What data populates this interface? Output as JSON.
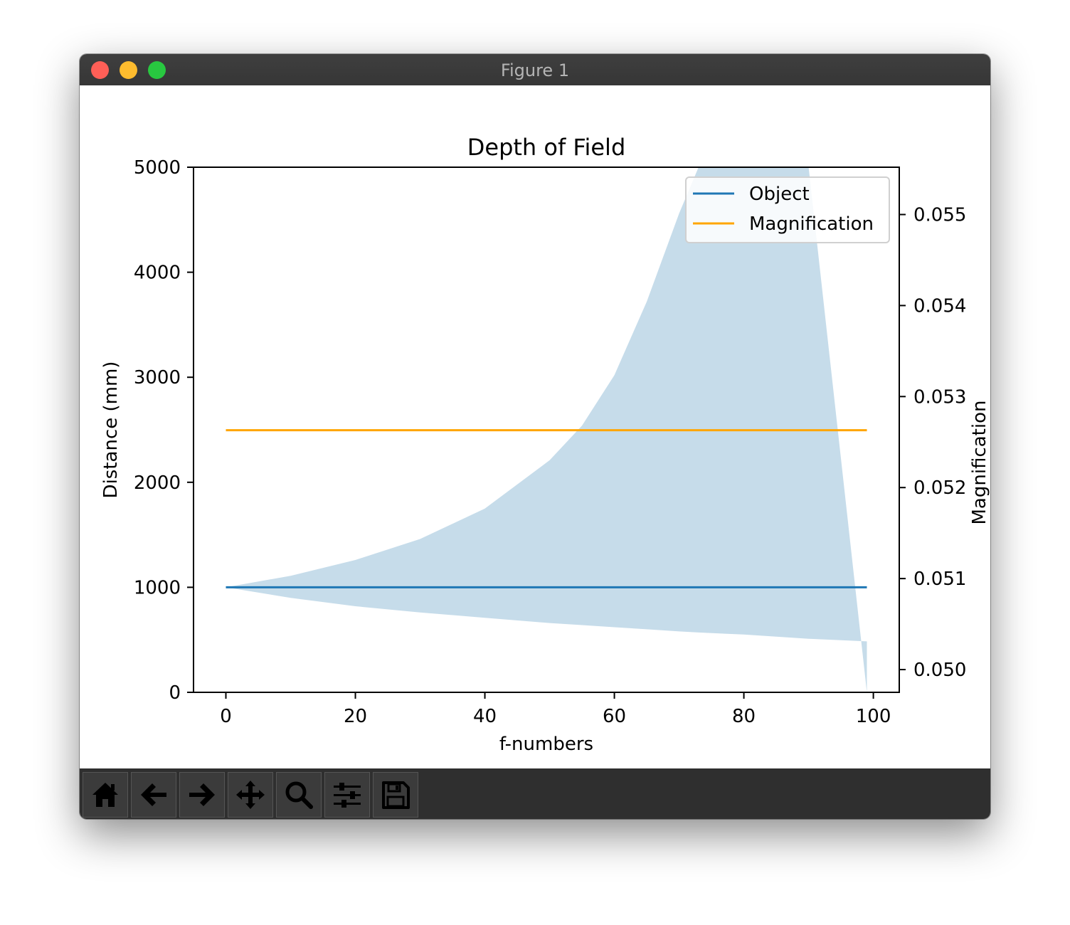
{
  "window": {
    "title": "Figure 1"
  },
  "toolbar": {
    "buttons": [
      {
        "name": "home-button",
        "icon": "home-icon"
      },
      {
        "name": "back-button",
        "icon": "arrow-left-icon"
      },
      {
        "name": "forward-button",
        "icon": "arrow-right-icon"
      },
      {
        "name": "pan-button",
        "icon": "move-icon"
      },
      {
        "name": "zoom-button",
        "icon": "magnifier-icon"
      },
      {
        "name": "configure-subplots-button",
        "icon": "sliders-icon"
      },
      {
        "name": "save-button",
        "icon": "floppy-disk-icon"
      }
    ]
  },
  "colors": {
    "object": "#1f77b4",
    "magnification": "#ffa500",
    "fill": "#c6dcea"
  },
  "chart_data": {
    "type": "line",
    "title": "Depth of Field",
    "xlabel": "f-numbers",
    "ylabel": "Distance (mm)",
    "y2label": "Magnification",
    "xlim": [
      -5,
      104
    ],
    "ylim": [
      0,
      5000
    ],
    "y2lim": [
      0.04975,
      0.05552
    ],
    "xticks": [
      "0",
      "20",
      "40",
      "60",
      "80",
      "100"
    ],
    "yticks": [
      "0",
      "1000",
      "2000",
      "3000",
      "4000",
      "5000"
    ],
    "y2ticks": [
      "0.050",
      "0.051",
      "0.052",
      "0.053",
      "0.054",
      "0.055"
    ],
    "legend": {
      "placement": "upper right",
      "entries": [
        "Object",
        "Magnification"
      ]
    },
    "series": [
      {
        "name": "Object",
        "axis": "left",
        "x": [
          0,
          99
        ],
        "values": [
          1000,
          1000
        ]
      },
      {
        "name": "Magnification",
        "axis": "right",
        "x": [
          0,
          99
        ],
        "values": [
          0.05263,
          0.05263
        ]
      }
    ],
    "depth_band": {
      "x": [
        0,
        10,
        20,
        30,
        40,
        50,
        55,
        60,
        65,
        70,
        73,
        80,
        90,
        99
      ],
      "near": [
        1000,
        900,
        820,
        760,
        710,
        660,
        640,
        620,
        600,
        580,
        570,
        550,
        510,
        485
      ],
      "far": [
        1000,
        1110,
        1260,
        1460,
        1750,
        2210,
        2540,
        3020,
        3720,
        4560,
        5000,
        5000,
        5000,
        0
      ]
    }
  }
}
